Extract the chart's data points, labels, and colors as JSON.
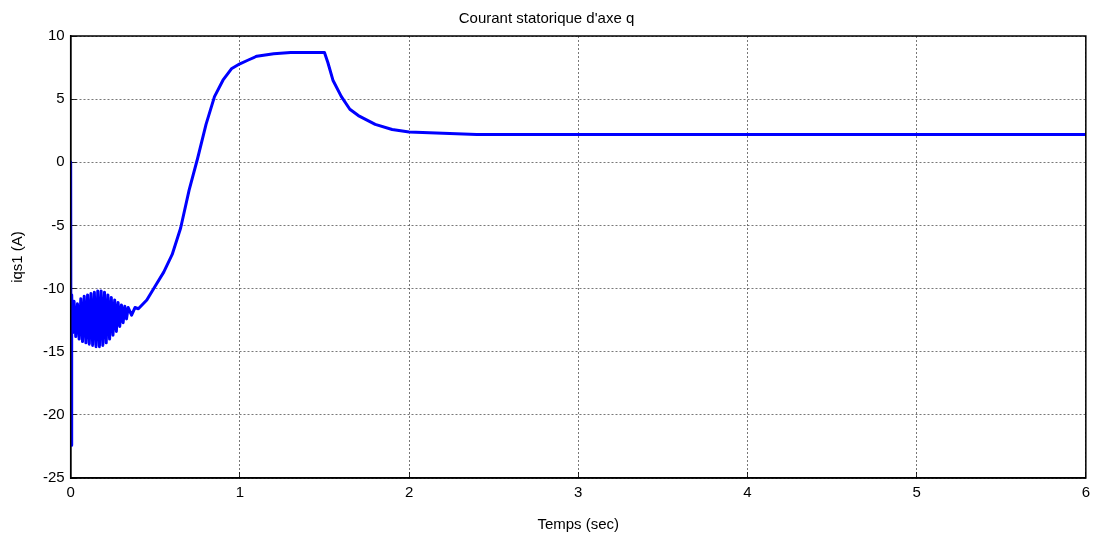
{
  "chart_data": {
    "type": "line",
    "title": "Courant statorique d'axe q",
    "xlabel": "Temps (sec)",
    "ylabel": "iqs1 (A)",
    "xlim": [
      0,
      6
    ],
    "xticks": [
      0,
      1,
      2,
      3,
      4,
      5,
      6
    ],
    "ylim": [
      -25,
      10
    ],
    "yticks": [
      -25,
      -20,
      -15,
      -10,
      -5,
      0,
      5,
      10
    ],
    "grid": true,
    "legend": false,
    "marker": "none",
    "line_style": "solid",
    "x": [
      0,
      0.002,
      0.006,
      0.012,
      0.02,
      0.03,
      0.04,
      0.05,
      0.06,
      0.07,
      0.08,
      0.09,
      0.1,
      0.11,
      0.12,
      0.13,
      0.14,
      0.15,
      0.16,
      0.17,
      0.18,
      0.19,
      0.2,
      0.21,
      0.22,
      0.23,
      0.24,
      0.25,
      0.26,
      0.27,
      0.28,
      0.29,
      0.3,
      0.31,
      0.32,
      0.33,
      0.34,
      0.36,
      0.38,
      0.4,
      0.45,
      0.5,
      0.55,
      0.6,
      0.65,
      0.7,
      0.75,
      0.8,
      0.85,
      0.9,
      0.95,
      1.0,
      1.05,
      1.1,
      1.2,
      1.3,
      1.4,
      1.5,
      1.52,
      1.55,
      1.6,
      1.65,
      1.7,
      1.8,
      1.9,
      2.0,
      2.2,
      2.4,
      3,
      4,
      5,
      6
    ],
    "series": [
      {
        "color": "#0000ff",
        "values": [
          0,
          -22.4,
          -10.5,
          -13.5,
          -11,
          -13.8,
          -11.2,
          -14,
          -10.8,
          -14.2,
          -10.6,
          -14.3,
          -10.5,
          -14.4,
          -10.4,
          -14.5,
          -10.3,
          -14.6,
          -10.2,
          -14.6,
          -10.2,
          -14.5,
          -10.3,
          -14.3,
          -10.5,
          -14,
          -10.7,
          -13.7,
          -10.9,
          -13.4,
          -11.1,
          -13,
          -11.3,
          -12.7,
          -11.4,
          -12.4,
          -11.5,
          -12.1,
          -11.5,
          -11.6,
          -10.9,
          -9.8,
          -8.7,
          -7.3,
          -5.2,
          -2.2,
          0.3,
          3,
          5.2,
          6.5,
          7.4,
          7.8,
          8.1,
          8.4,
          8.6,
          8.7,
          8.7,
          8.7,
          7.9,
          6.5,
          5.2,
          4.2,
          3.7,
          3,
          2.6,
          2.4,
          2.3,
          2.2,
          2.2,
          2.2,
          2.2,
          2.2
        ]
      }
    ]
  }
}
